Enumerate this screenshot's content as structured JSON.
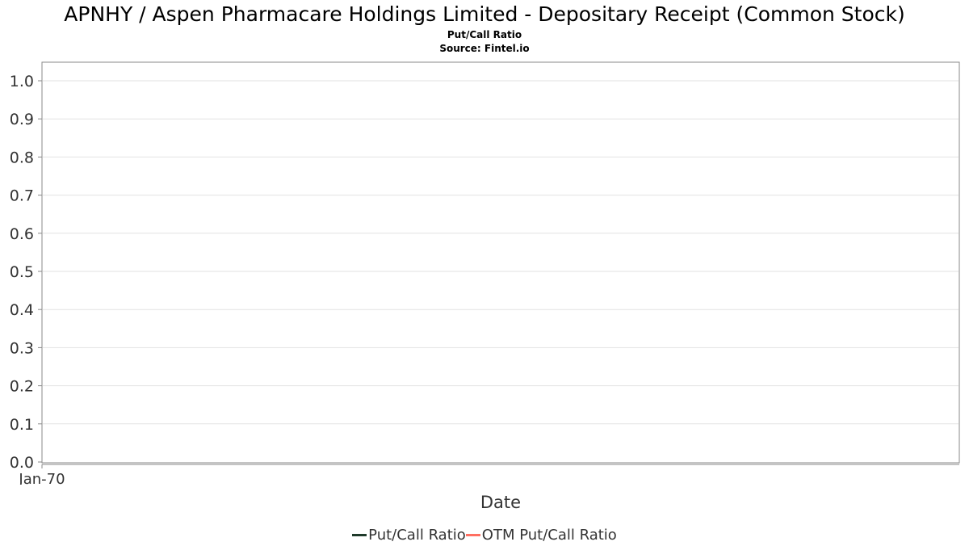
{
  "chart_data": {
    "type": "line",
    "title": "APNHY / Aspen Pharmacare Holdings Limited - Depositary Receipt (Common Stock)",
    "subtitle": "Put/Call Ratio",
    "source": "Source: Fintel.io",
    "xlabel": "Date",
    "ylabel": "",
    "x_ticks": [
      "Jan-70"
    ],
    "y_ticks": [
      "0.0",
      "0.1",
      "0.2",
      "0.3",
      "0.4",
      "0.5",
      "0.6",
      "0.7",
      "0.8",
      "0.9",
      "1.0"
    ],
    "ylim": [
      0,
      1.05
    ],
    "grid": true,
    "legend_position": "bottom",
    "series": [
      {
        "name": "Put/Call Ratio",
        "color": "#1f3a2a",
        "values": []
      },
      {
        "name": "OTM Put/Call Ratio",
        "color": "#ff6f61",
        "values": []
      }
    ]
  }
}
